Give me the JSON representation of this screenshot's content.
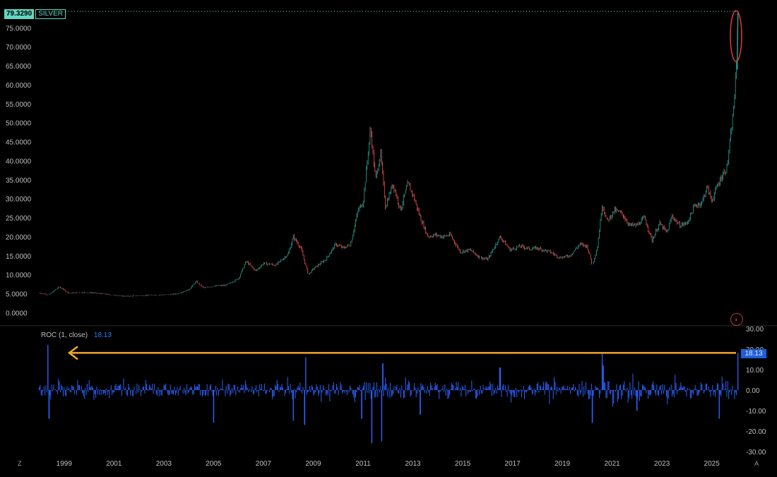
{
  "price_tag": {
    "value": "79.3290",
    "symbol": "SILVER"
  },
  "roc_legend": {
    "label": "ROC (1, close)",
    "value": "18.13"
  },
  "roc_tag": "18.13",
  "corner_left": "Z",
  "corner_right": "A",
  "colors": {
    "up": "#26a69a",
    "down": "#ef5350",
    "roc": "#2962ff",
    "arrow": "#f2a52e",
    "ellipse": "#e53935",
    "tag": "#63d6c0"
  },
  "chart_data": [
    {
      "type": "line",
      "title": "",
      "xlabel": "",
      "ylabel": "",
      "x_ticks": [
        "1999",
        "2001",
        "2003",
        "2005",
        "2007",
        "2009",
        "2011",
        "2013",
        "2015",
        "2017",
        "2019",
        "2021",
        "2023",
        "2025"
      ],
      "y_ticks": [
        "0.0000",
        "5.0000",
        "10.0000",
        "15.0000",
        "20.0000",
        "25.0000",
        "30.0000",
        "35.0000",
        "40.0000",
        "45.0000",
        "50.0000",
        "55.0000",
        "60.0000",
        "65.0000",
        "70.0000",
        "75.0000"
      ],
      "ylim": [
        -1,
        80
      ],
      "xlim": [
        1997.9,
        2026.2
      ],
      "series": [
        {
          "values": [
            [
              1998.0,
              5.2
            ],
            [
              1998.4,
              4.7
            ],
            [
              1998.8,
              6.8
            ],
            [
              1999.2,
              5.1
            ],
            [
              1999.6,
              5.3
            ],
            [
              2000.0,
              5.3
            ],
            [
              2000.5,
              5.0
            ],
            [
              2001.0,
              4.6
            ],
            [
              2001.5,
              4.3
            ],
            [
              2002.0,
              4.5
            ],
            [
              2002.5,
              4.6
            ],
            [
              2003.0,
              4.7
            ],
            [
              2003.5,
              4.9
            ],
            [
              2004.0,
              6.0
            ],
            [
              2004.3,
              8.2
            ],
            [
              2004.6,
              6.5
            ],
            [
              2005.0,
              7.0
            ],
            [
              2005.5,
              7.2
            ],
            [
              2006.0,
              9.0
            ],
            [
              2006.3,
              13.5
            ],
            [
              2006.7,
              11.0
            ],
            [
              2007.0,
              13.0
            ],
            [
              2007.5,
              12.5
            ],
            [
              2008.0,
              15.5
            ],
            [
              2008.2,
              20.0
            ],
            [
              2008.5,
              17.0
            ],
            [
              2008.8,
              10.0
            ],
            [
              2009.0,
              11.5
            ],
            [
              2009.5,
              14.0
            ],
            [
              2009.9,
              18.0
            ],
            [
              2010.2,
              17.0
            ],
            [
              2010.5,
              18.0
            ],
            [
              2010.8,
              27.0
            ],
            [
              2011.0,
              29.0
            ],
            [
              2011.3,
              48.5
            ],
            [
              2011.5,
              35.0
            ],
            [
              2011.7,
              42.0
            ],
            [
              2011.9,
              28.0
            ],
            [
              2012.2,
              34.0
            ],
            [
              2012.5,
              27.0
            ],
            [
              2012.8,
              34.0
            ],
            [
              2013.0,
              31.0
            ],
            [
              2013.3,
              25.0
            ],
            [
              2013.6,
              20.0
            ],
            [
              2013.9,
              20.5
            ],
            [
              2014.2,
              20.0
            ],
            [
              2014.5,
              20.5
            ],
            [
              2014.9,
              16.0
            ],
            [
              2015.3,
              16.5
            ],
            [
              2015.7,
              14.5
            ],
            [
              2016.0,
              14.0
            ],
            [
              2016.5,
              20.0
            ],
            [
              2016.9,
              16.5
            ],
            [
              2017.3,
              17.5
            ],
            [
              2017.7,
              16.8
            ],
            [
              2018.0,
              17.0
            ],
            [
              2018.5,
              16.0
            ],
            [
              2018.9,
              14.5
            ],
            [
              2019.3,
              15.0
            ],
            [
              2019.7,
              18.0
            ],
            [
              2020.0,
              17.5
            ],
            [
              2020.2,
              12.5
            ],
            [
              2020.4,
              17.0
            ],
            [
              2020.6,
              28.5
            ],
            [
              2020.8,
              24.0
            ],
            [
              2021.1,
              27.0
            ],
            [
              2021.4,
              26.0
            ],
            [
              2021.7,
              23.0
            ],
            [
              2022.0,
              23.0
            ],
            [
              2022.3,
              25.0
            ],
            [
              2022.6,
              19.0
            ],
            [
              2022.9,
              23.5
            ],
            [
              2023.2,
              21.0
            ],
            [
              2023.4,
              25.5
            ],
            [
              2023.7,
              23.0
            ],
            [
              2024.0,
              23.5
            ],
            [
              2024.3,
              28.0
            ],
            [
              2024.6,
              29.0
            ],
            [
              2024.8,
              33.0
            ],
            [
              2025.0,
              29.5
            ],
            [
              2025.2,
              33.0
            ],
            [
              2025.4,
              36.0
            ],
            [
              2025.6,
              38.0
            ],
            [
              2025.75,
              46.0
            ],
            [
              2025.85,
              52.0
            ],
            [
              2025.92,
              58.0
            ],
            [
              2026.0,
              66.0
            ],
            [
              2026.05,
              79.3
            ]
          ]
        }
      ]
    },
    {
      "type": "bar",
      "title": "ROC (1, close)",
      "xlabel": "",
      "ylabel": "",
      "y_ticks": [
        "30.00",
        "20.00",
        "10.00",
        "0.00",
        "-10.00",
        "-20.00",
        "-30.00"
      ],
      "ylim": [
        -30,
        30
      ],
      "last_value": 18.13,
      "notable_values": [
        [
          1998.35,
          22
        ],
        [
          1998.4,
          -14
        ],
        [
          2005.0,
          -16
        ],
        [
          2008.2,
          -15
        ],
        [
          2008.65,
          -17
        ],
        [
          2008.7,
          16
        ],
        [
          2010.95,
          -14
        ],
        [
          2011.35,
          -26
        ],
        [
          2011.75,
          -25
        ],
        [
          2011.8,
          13
        ],
        [
          2013.3,
          -12
        ],
        [
          2016.5,
          11
        ],
        [
          2020.2,
          -16
        ],
        [
          2020.6,
          18
        ],
        [
          2020.65,
          12
        ],
        [
          2022.0,
          -10
        ],
        [
          2025.3,
          -14
        ],
        [
          2026.05,
          18.13
        ]
      ]
    }
  ]
}
